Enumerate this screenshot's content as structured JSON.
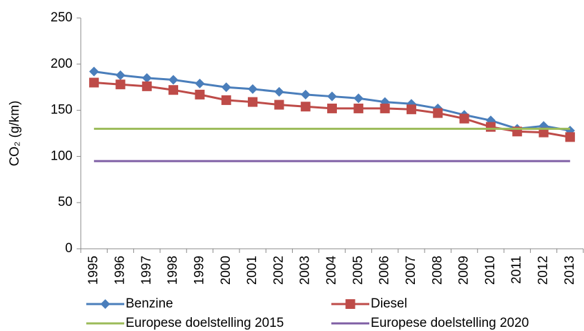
{
  "chart_data": {
    "type": "line",
    "ylabel": "CO₂ (g/km)",
    "categories": [
      "1995",
      "1996",
      "1997",
      "1998",
      "1999",
      "2000",
      "2001",
      "2002",
      "2003",
      "2004",
      "2005",
      "2006",
      "2007",
      "2008",
      "2009",
      "2010",
      "2011",
      "2012",
      "2013"
    ],
    "ylim": [
      0,
      250
    ],
    "yticks": [
      0,
      50,
      100,
      150,
      200,
      250
    ],
    "grid": false,
    "legend": "bottom",
    "series": [
      {
        "name": "Benzine",
        "color": "#4a7ebb",
        "marker": "diamond",
        "values": [
          192,
          188,
          185,
          183,
          179,
          175,
          173,
          170,
          167,
          165,
          163,
          159,
          157,
          152,
          145,
          139,
          130,
          133,
          128
        ]
      },
      {
        "name": "Diesel",
        "color": "#be4b48",
        "marker": "square",
        "values": [
          180,
          178,
          176,
          172,
          167,
          161,
          159,
          156,
          154,
          152,
          152,
          152,
          151,
          147,
          141,
          132,
          127,
          126,
          121
        ]
      },
      {
        "name": "Europese doelstelling 2015",
        "color": "#9bbb59",
        "marker": "none",
        "values": [
          130,
          130,
          130,
          130,
          130,
          130,
          130,
          130,
          130,
          130,
          130,
          130,
          130,
          130,
          130,
          130,
          130,
          130,
          130
        ]
      },
      {
        "name": "Europese doelstelling 2020",
        "color": "#7f5fa5",
        "marker": "none",
        "values": [
          95,
          95,
          95,
          95,
          95,
          95,
          95,
          95,
          95,
          95,
          95,
          95,
          95,
          95,
          95,
          95,
          95,
          95,
          95
        ]
      }
    ]
  }
}
